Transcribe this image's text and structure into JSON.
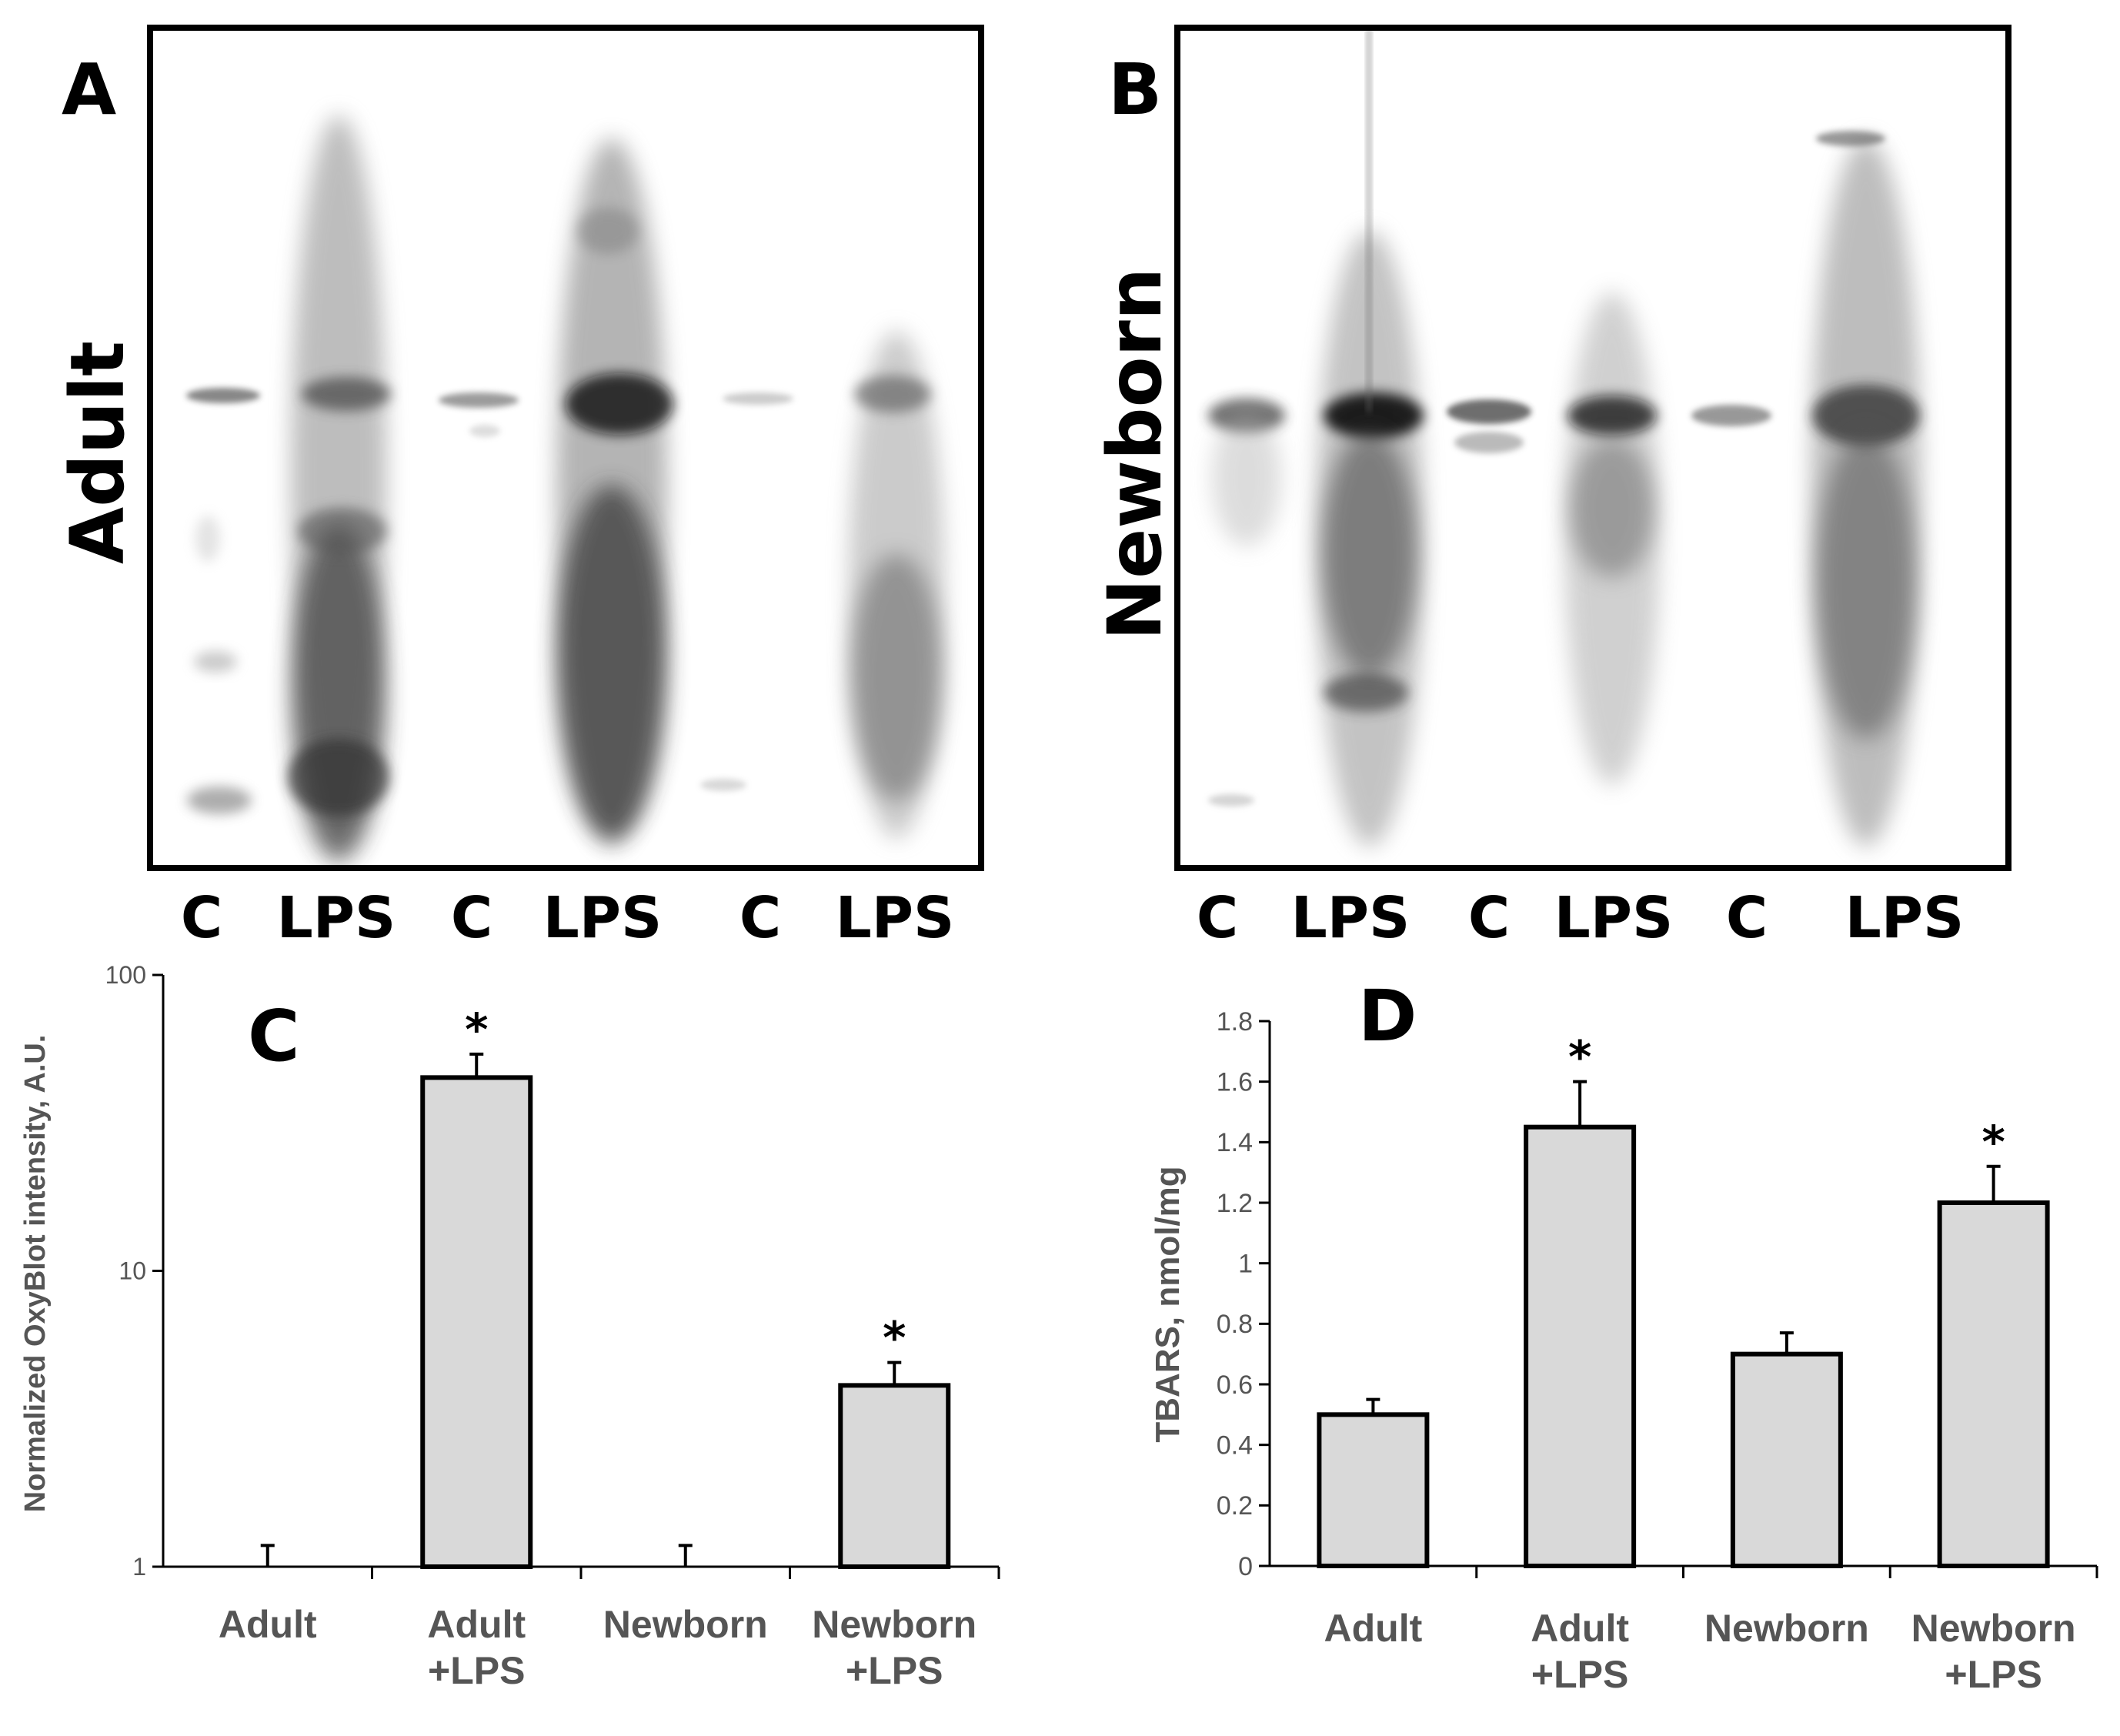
{
  "panels": {
    "A": {
      "letter": "A",
      "side_label": "Adult",
      "lanes": [
        "C",
        "LPS",
        "C",
        "LPS",
        "C",
        "LPS"
      ]
    },
    "B": {
      "letter": "B",
      "side_label": "Newborn",
      "lanes": [
        "C",
        "LPS",
        "C",
        "LPS",
        "C",
        "LPS"
      ]
    }
  },
  "colors": {
    "bar_fill": "#d9d9d9",
    "bar_stroke": "#000000",
    "axis": "#000000",
    "text": "#555555"
  },
  "chart_data": [
    {
      "panel": "C",
      "type": "bar",
      "ylabel": "Normalized OxyBlot intensity, A.U.",
      "log_y": true,
      "ylim": [
        1,
        100
      ],
      "yticks": [
        "1",
        "10",
        "100"
      ],
      "categories": [
        [
          "Adult"
        ],
        [
          "Adult",
          "+LPS"
        ],
        [
          "Newborn"
        ],
        [
          "Newborn",
          "+LPS"
        ]
      ],
      "values": [
        1,
        45,
        1,
        4.1
      ],
      "error": [
        0.18,
        9,
        0.18,
        0.8
      ],
      "significance": [
        "",
        "*",
        "",
        "*"
      ]
    },
    {
      "panel": "D",
      "type": "bar",
      "ylabel": "TBARS, nmol/mg",
      "log_y": false,
      "ylim": [
        0,
        1.8
      ],
      "yticks": [
        "0",
        "0.2",
        "0.4",
        "0.6",
        "0.8",
        "1",
        "1.2",
        "1.4",
        "1.6",
        "1.8"
      ],
      "categories": [
        [
          "Adult"
        ],
        [
          "Adult",
          "+LPS"
        ],
        [
          "Newborn"
        ],
        [
          "Newborn",
          "+LPS"
        ]
      ],
      "values": [
        0.5,
        1.45,
        0.7,
        1.2
      ],
      "error": [
        0.05,
        0.15,
        0.07,
        0.12
      ],
      "significance": [
        "",
        "*",
        "",
        "*"
      ]
    }
  ]
}
